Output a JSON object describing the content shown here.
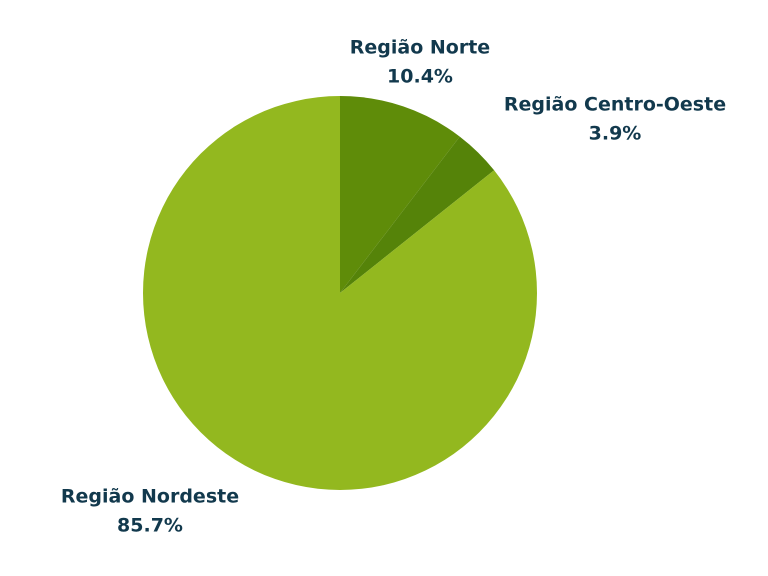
{
  "chart_data": {
    "type": "pie",
    "categories": [
      "Região Norte",
      "Região Centro-Oeste",
      "Região Nordeste"
    ],
    "values": [
      10.4,
      3.9,
      85.7
    ],
    "value_labels": [
      "10.4%",
      "3.9%",
      "85.7%"
    ],
    "colors": [
      "#5f8c09",
      "#558309",
      "#93b81f"
    ]
  }
}
